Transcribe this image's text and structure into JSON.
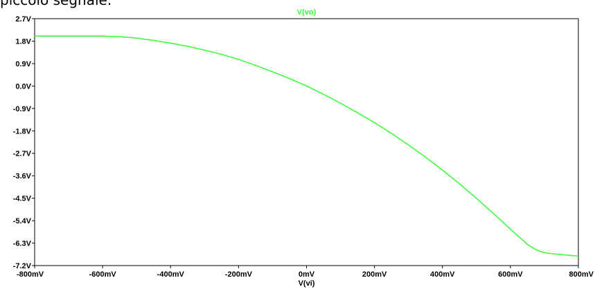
{
  "caption": {
    "text": "piccolo segnale."
  },
  "chart_data": {
    "type": "line",
    "title": "",
    "xlabel": "V(vi)",
    "ylabel": "",
    "xlim": [
      -800,
      800
    ],
    "ylim": [
      -7.2,
      2.7
    ],
    "x_unit": "mV",
    "x_ticks": [
      -800,
      -600,
      -400,
      -200,
      0,
      200,
      400,
      600,
      800
    ],
    "x_tick_labels": [
      "-800mV",
      "-600mV",
      "-400mV",
      "-200mV",
      "0mV",
      "200mV",
      "400mV",
      "600mV",
      "800mV"
    ],
    "y_ticks": [
      2.7,
      1.8,
      0.9,
      0.0,
      -0.9,
      -1.8,
      -2.7,
      -3.6,
      -4.5,
      -5.4,
      -6.3,
      -7.2
    ],
    "y_tick_labels": [
      "2.7V",
      "1.8V",
      "0.9V",
      "0.0V",
      "-0.9V",
      "-1.8V",
      "-2.7V",
      "-3.6V",
      "-4.5V",
      "-5.4V",
      "-6.3V",
      "-7.2V"
    ],
    "grid": false,
    "legend": "top-center",
    "series": [
      {
        "name": "V(vo)",
        "color": "#33ff33",
        "x": [
          -800,
          -700,
          -600,
          -550,
          -500,
          -450,
          -400,
          -350,
          -300,
          -250,
          -200,
          -150,
          -100,
          -50,
          0,
          50,
          100,
          150,
          200,
          250,
          300,
          350,
          400,
          450,
          500,
          550,
          600,
          650,
          680,
          700,
          720,
          750,
          800
        ],
        "y": [
          2.0,
          2.0,
          2.0,
          1.98,
          1.92,
          1.83,
          1.72,
          1.59,
          1.44,
          1.27,
          1.07,
          0.83,
          0.57,
          0.3,
          0.0,
          -0.33,
          -0.69,
          -1.07,
          -1.47,
          -1.9,
          -2.36,
          -2.85,
          -3.37,
          -3.92,
          -4.5,
          -5.11,
          -5.74,
          -6.35,
          -6.6,
          -6.68,
          -6.72,
          -6.76,
          -6.82
        ]
      }
    ]
  }
}
